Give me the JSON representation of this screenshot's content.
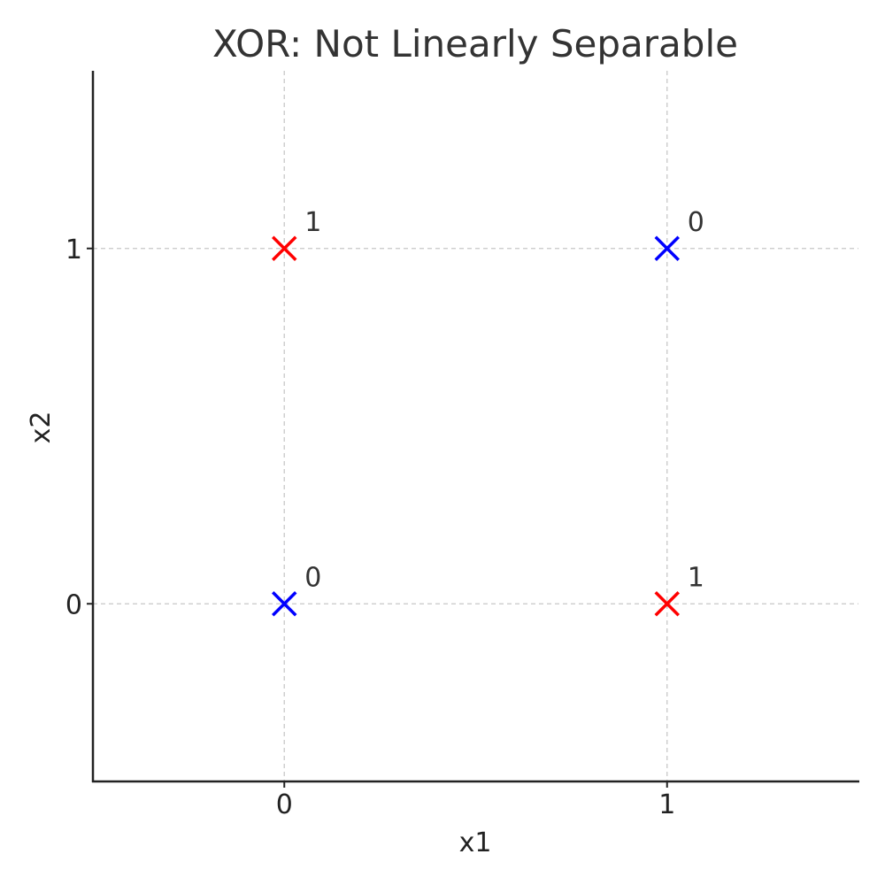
{
  "chart_data": {
    "type": "scatter",
    "title": "XOR: Not Linearly Separable",
    "xlabel": "x1",
    "ylabel": "x2",
    "xlim": [
      -0.5,
      1.5
    ],
    "ylim": [
      -0.5,
      1.5
    ],
    "xticks": [
      0,
      1
    ],
    "yticks": [
      0,
      1
    ],
    "xtick_labels": [
      "0",
      "1"
    ],
    "ytick_labels": [
      "0",
      "1"
    ],
    "grid": true,
    "marker": "x",
    "colors": {
      "class_0": "#0000ff",
      "class_1": "#ff0000"
    },
    "points": [
      {
        "x": 0,
        "y": 0,
        "label": "0",
        "color": "#0000ff"
      },
      {
        "x": 0,
        "y": 1,
        "label": "1",
        "color": "#ff0000"
      },
      {
        "x": 1,
        "y": 0,
        "label": "1",
        "color": "#ff0000"
      },
      {
        "x": 1,
        "y": 1,
        "label": "0",
        "color": "#0000ff"
      }
    ]
  }
}
